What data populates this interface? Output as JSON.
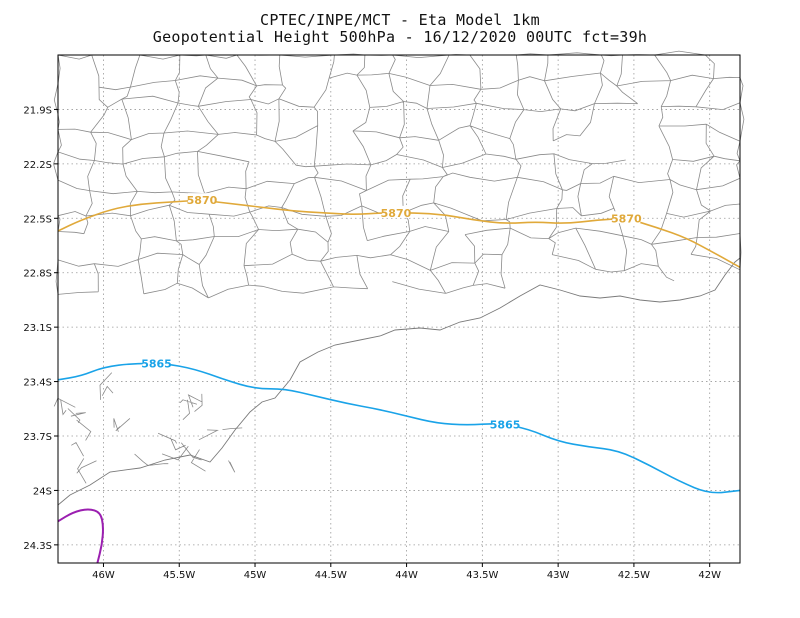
{
  "title": {
    "line1": "CPTEC/INPE/MCT -  Eta Model 1km",
    "line2": "Geopotential Height 500hPa - 16/12/2020 00UTC fct=39h"
  },
  "axes": {
    "x_ticks": [
      "46W",
      "45.5W",
      "45W",
      "44.5W",
      "44W",
      "43.5W",
      "43W",
      "42.5W",
      "42W"
    ],
    "x_values": [
      -46,
      -45.5,
      -45,
      -44.5,
      -44,
      -43.5,
      -43,
      -42.5,
      -42
    ],
    "y_ticks": [
      "21.9S",
      "22.2S",
      "22.5S",
      "22.8S",
      "23.1S",
      "23.4S",
      "23.7S",
      "24S",
      "24.3S"
    ],
    "y_values": [
      -21.9,
      -22.2,
      -22.5,
      -22.8,
      -23.1,
      -23.4,
      -23.7,
      -24.0,
      -24.3
    ],
    "lon_range": [
      -46.3,
      -41.8
    ],
    "lat_range": [
      -24.4,
      -21.6
    ],
    "grid": "dotted"
  },
  "contours": [
    {
      "label": "5870",
      "color": "#e0a93a",
      "label_lons": [
        -45.35,
        -44.07,
        -42.55
      ],
      "points": [
        [
          -46.3,
          -22.57
        ],
        [
          -46.15,
          -22.51
        ],
        [
          -45.95,
          -22.45
        ],
        [
          -45.75,
          -22.42
        ],
        [
          -45.55,
          -22.41
        ],
        [
          -45.35,
          -22.4
        ],
        [
          -45.15,
          -22.42
        ],
        [
          -44.95,
          -22.44
        ],
        [
          -44.75,
          -22.46
        ],
        [
          -44.55,
          -22.47
        ],
        [
          -44.35,
          -22.48
        ],
        [
          -44.15,
          -22.47
        ],
        [
          -43.95,
          -22.47
        ],
        [
          -43.75,
          -22.48
        ],
        [
          -43.55,
          -22.51
        ],
        [
          -43.35,
          -22.53
        ],
        [
          -43.15,
          -22.52
        ],
        [
          -42.95,
          -22.53
        ],
        [
          -42.75,
          -22.51
        ],
        [
          -42.55,
          -22.5
        ],
        [
          -42.35,
          -22.55
        ],
        [
          -42.15,
          -22.61
        ],
        [
          -41.95,
          -22.7
        ],
        [
          -41.8,
          -22.77
        ]
      ]
    },
    {
      "label": "5865",
      "color": "#1aa3e8",
      "label_lons": [
        -45.65,
        -43.35
      ],
      "points": [
        [
          -46.3,
          -23.39
        ],
        [
          -46.15,
          -23.37
        ],
        [
          -46.0,
          -23.32
        ],
        [
          -45.8,
          -23.3
        ],
        [
          -45.6,
          -23.3
        ],
        [
          -45.4,
          -23.33
        ],
        [
          -45.2,
          -23.39
        ],
        [
          -45.0,
          -23.44
        ],
        [
          -44.8,
          -23.44
        ],
        [
          -44.6,
          -23.48
        ],
        [
          -44.4,
          -23.52
        ],
        [
          -44.2,
          -23.55
        ],
        [
          -44.0,
          -23.59
        ],
        [
          -43.8,
          -23.63
        ],
        [
          -43.6,
          -23.64
        ],
        [
          -43.4,
          -23.63
        ],
        [
          -43.2,
          -23.66
        ],
        [
          -43.0,
          -23.73
        ],
        [
          -42.8,
          -23.76
        ],
        [
          -42.6,
          -23.78
        ],
        [
          -42.4,
          -23.86
        ],
        [
          -42.2,
          -23.95
        ],
        [
          -42.0,
          -24.02
        ],
        [
          -41.8,
          -24.0
        ]
      ]
    },
    {
      "label": "",
      "color": "#9b1fb0",
      "label_lons": [],
      "points": [
        [
          -46.3,
          -24.17
        ],
        [
          -46.2,
          -24.12
        ],
        [
          -46.1,
          -24.1
        ],
        [
          -46.02,
          -24.12
        ],
        [
          -46.0,
          -24.2
        ],
        [
          -46.01,
          -24.3
        ],
        [
          -46.04,
          -24.4
        ]
      ]
    }
  ]
}
